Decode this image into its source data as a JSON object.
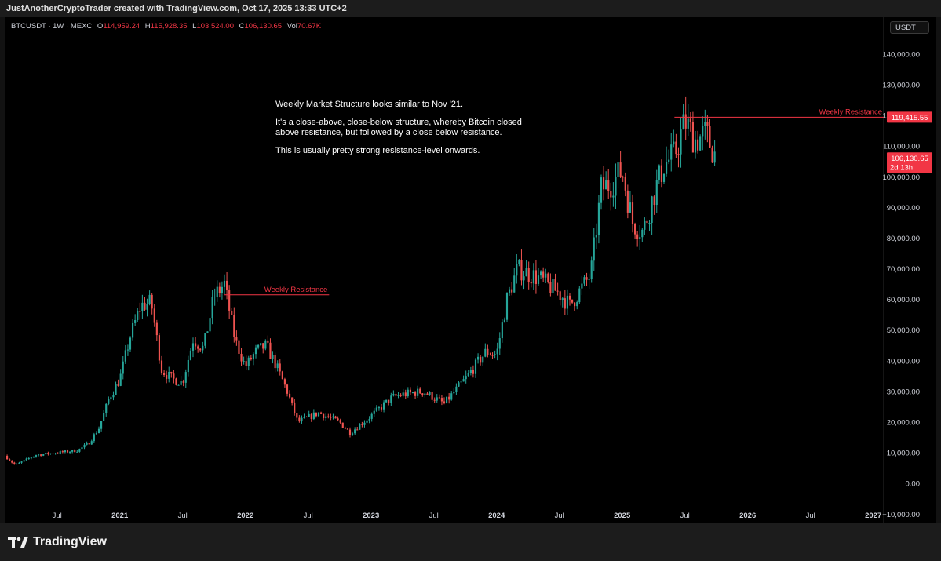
{
  "header": {
    "credit": "JustAnotherCryptoTrader created with TradingView.com, Oct 17, 2025 13:33 UTC+2"
  },
  "legend": {
    "symbol": "BTCUSDT · 1W · MEXC",
    "open_label": "O",
    "open": "114,959.24",
    "high_label": "H",
    "high": "115,928.35",
    "low_label": "L",
    "low": "103,524.00",
    "close_label": "C",
    "close": "106,130.65",
    "vol_label": "Vol",
    "vol": "70.67K"
  },
  "currency_label": "USDT",
  "annotation": {
    "line1": "Weekly Market Structure looks similar to Nov '21.",
    "line2": "It's a close-above, close-below structure, whereby Bitcoin closed above resistance, but followed by a close below resistance.",
    "line3": "This is usually pretty strong resistance-level onwards."
  },
  "brand": {
    "name": "TradingView"
  },
  "colors": {
    "up": "#26a69a",
    "down": "#ef5350",
    "resistance": "#f23645",
    "label_bg": "#f23645"
  },
  "chart_data": {
    "type": "candlestick",
    "interval": "1W",
    "x_start": "2020-02",
    "x_end": "2027-02",
    "ylim": [
      -13000,
      152000
    ],
    "y_ticks": [
      -10000,
      0,
      10000,
      20000,
      30000,
      40000,
      50000,
      60000,
      70000,
      80000,
      90000,
      100000,
      110000,
      120000,
      130000,
      140000
    ],
    "y_tick_labels": [
      "−10,000.00",
      "0.00",
      "10,000.00",
      "20,000.00",
      "30,000.00",
      "40,000.00",
      "50,000.00",
      "60,000.00",
      "70,000.00",
      "80,000.00",
      "90,000.00",
      "100,000.00",
      "110,000.00",
      "120,000.00",
      "130,000.00",
      "140,000.00"
    ],
    "x_tick_labels": [
      {
        "date": "2020-07",
        "label": "Jul"
      },
      {
        "date": "2021-01",
        "label": "2021"
      },
      {
        "date": "2021-07",
        "label": "Jul"
      },
      {
        "date": "2022-01",
        "label": "2022"
      },
      {
        "date": "2022-07",
        "label": "Jul"
      },
      {
        "date": "2023-01",
        "label": "2023"
      },
      {
        "date": "2023-07",
        "label": "Jul"
      },
      {
        "date": "2024-01",
        "label": "2024"
      },
      {
        "date": "2024-07",
        "label": "Jul"
      },
      {
        "date": "2025-01",
        "label": "2025"
      },
      {
        "date": "2025-07",
        "label": "Jul"
      },
      {
        "date": "2026-01",
        "label": "2026"
      },
      {
        "date": "2026-07",
        "label": "Jul"
      },
      {
        "date": "2027-01",
        "label": "2027"
      }
    ],
    "anchors": [
      {
        "date": "2020-02",
        "price": 9000
      },
      {
        "date": "2020-03",
        "price": 6000
      },
      {
        "date": "2020-05",
        "price": 9300
      },
      {
        "date": "2020-07",
        "price": 10000
      },
      {
        "date": "2020-09",
        "price": 10800
      },
      {
        "date": "2020-10",
        "price": 13000
      },
      {
        "date": "2020-11",
        "price": 18000
      },
      {
        "date": "2020-12",
        "price": 28000
      },
      {
        "date": "2021-01",
        "price": 34000
      },
      {
        "date": "2021-02",
        "price": 48000
      },
      {
        "date": "2021-03",
        "price": 58000
      },
      {
        "date": "2021-04",
        "price": 59000
      },
      {
        "date": "2021-05",
        "price": 37000
      },
      {
        "date": "2021-06",
        "price": 34000
      },
      {
        "date": "2021-07",
        "price": 33000
      },
      {
        "date": "2021-08",
        "price": 47000
      },
      {
        "date": "2021-09",
        "price": 44000
      },
      {
        "date": "2021-10",
        "price": 61000
      },
      {
        "date": "2021-11",
        "price": 65000
      },
      {
        "date": "2021-12",
        "price": 47000
      },
      {
        "date": "2022-01",
        "price": 38000
      },
      {
        "date": "2022-02",
        "price": 43000
      },
      {
        "date": "2022-03",
        "price": 45000
      },
      {
        "date": "2022-04",
        "price": 38000
      },
      {
        "date": "2022-05",
        "price": 30000
      },
      {
        "date": "2022-06",
        "price": 20000
      },
      {
        "date": "2022-08",
        "price": 23000
      },
      {
        "date": "2022-10",
        "price": 20000
      },
      {
        "date": "2022-11",
        "price": 16500
      },
      {
        "date": "2023-01",
        "price": 22000
      },
      {
        "date": "2023-03",
        "price": 28000
      },
      {
        "date": "2023-04",
        "price": 29000
      },
      {
        "date": "2023-06",
        "price": 30000
      },
      {
        "date": "2023-08",
        "price": 26000
      },
      {
        "date": "2023-10",
        "price": 34000
      },
      {
        "date": "2023-12",
        "price": 43000
      },
      {
        "date": "2024-01",
        "price": 42000
      },
      {
        "date": "2024-02",
        "price": 60000
      },
      {
        "date": "2024-03",
        "price": 70000
      },
      {
        "date": "2024-05",
        "price": 67000
      },
      {
        "date": "2024-07",
        "price": 62000
      },
      {
        "date": "2024-08",
        "price": 58000
      },
      {
        "date": "2024-10",
        "price": 68000
      },
      {
        "date": "2024-11",
        "price": 96000
      },
      {
        "date": "2024-12",
        "price": 98000
      },
      {
        "date": "2025-01",
        "price": 102000
      },
      {
        "date": "2025-02",
        "price": 85000
      },
      {
        "date": "2025-03",
        "price": 82000
      },
      {
        "date": "2025-04",
        "price": 94000
      },
      {
        "date": "2025-05",
        "price": 104000
      },
      {
        "date": "2025-06",
        "price": 107000
      },
      {
        "date": "2025-07",
        "price": 118000
      },
      {
        "date": "2025-08",
        "price": 112000
      },
      {
        "date": "2025-09",
        "price": 114000
      },
      {
        "date": "2025-10",
        "price": 106130
      }
    ],
    "annotations": [
      {
        "label": "Weekly Resistance",
        "price": 61500,
        "from": "2021-11",
        "to": "2022-09"
      },
      {
        "label": "Weekly Resistance",
        "price": 119415.55,
        "from": "2025-06",
        "to": "2027-02"
      }
    ],
    "price_labels": [
      {
        "price": 119415.55,
        "text": "119,415.55"
      },
      {
        "price": 106130.65,
        "text": "106,130.65",
        "sub": "2d 13h"
      }
    ]
  }
}
